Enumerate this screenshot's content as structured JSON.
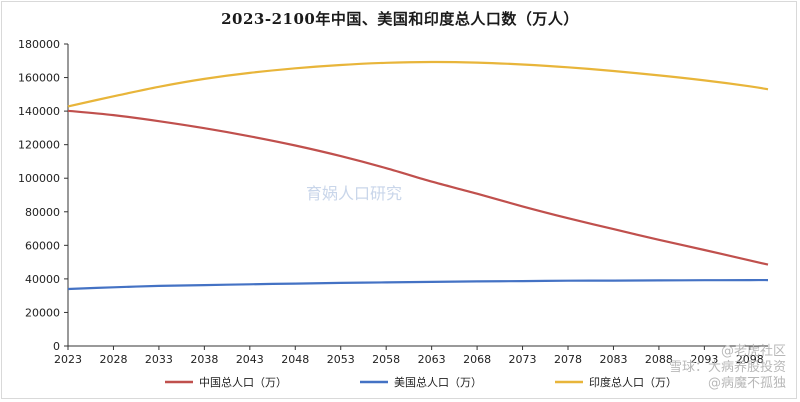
{
  "chart_data": {
    "type": "line",
    "title": "2023-2100年中国、美国和印度总人口数（万人）",
    "xlabel": "",
    "ylabel": "",
    "x": [
      2023,
      2028,
      2033,
      2038,
      2043,
      2048,
      2053,
      2058,
      2063,
      2068,
      2073,
      2078,
      2083,
      2088,
      2093,
      2098
    ],
    "x_ticks": [
      "2023",
      "2028",
      "2033",
      "2038",
      "2043",
      "2048",
      "2053",
      "2058",
      "2063",
      "2068",
      "2073",
      "2078",
      "2083",
      "2088",
      "2093",
      "2098"
    ],
    "x_end": 2100,
    "ylim": [
      0,
      180000
    ],
    "y_ticks": [
      0,
      20000,
      40000,
      60000,
      80000,
      100000,
      120000,
      140000,
      160000,
      180000
    ],
    "grid": false,
    "legend_position": "bottom",
    "series": [
      {
        "name": "中国总人口（万）",
        "color": "#c0504d",
        "x": [
          2023,
          2028,
          2033,
          2038,
          2043,
          2048,
          2053,
          2058,
          2063,
          2068,
          2073,
          2078,
          2083,
          2088,
          2093,
          2098,
          2100
        ],
        "values": [
          140200,
          137600,
          134000,
          129800,
          125000,
          119500,
          113200,
          106000,
          98000,
          90800,
          83200,
          76200,
          69700,
          63300,
          57200,
          51000,
          48500
        ]
      },
      {
        "name": "美国总人口（万）",
        "color": "#4472c4",
        "x": [
          2023,
          2028,
          2033,
          2038,
          2043,
          2048,
          2053,
          2058,
          2063,
          2068,
          2073,
          2078,
          2083,
          2088,
          2093,
          2098,
          2100
        ],
        "values": [
          34000,
          35000,
          35800,
          36300,
          36800,
          37200,
          37600,
          37900,
          38200,
          38500,
          38700,
          38900,
          39000,
          39100,
          39200,
          39300,
          39300
        ]
      },
      {
        "name": "印度总人口（万）",
        "color": "#e8b53a",
        "x": [
          2023,
          2028,
          2033,
          2038,
          2043,
          2048,
          2053,
          2058,
          2063,
          2068,
          2073,
          2078,
          2083,
          2088,
          2093,
          2098,
          2100
        ],
        "values": [
          142800,
          148800,
          154500,
          159200,
          162800,
          165500,
          167500,
          168800,
          169300,
          168900,
          167800,
          166100,
          163900,
          161300,
          158300,
          154800,
          153000
        ]
      }
    ]
  },
  "watermarks": {
    "center": "育娲人口研究",
    "corner_line1": "@老虎社区",
    "corner_line2": "雪球：大病养股投资",
    "corner_line3": "@病魔不孤独"
  }
}
